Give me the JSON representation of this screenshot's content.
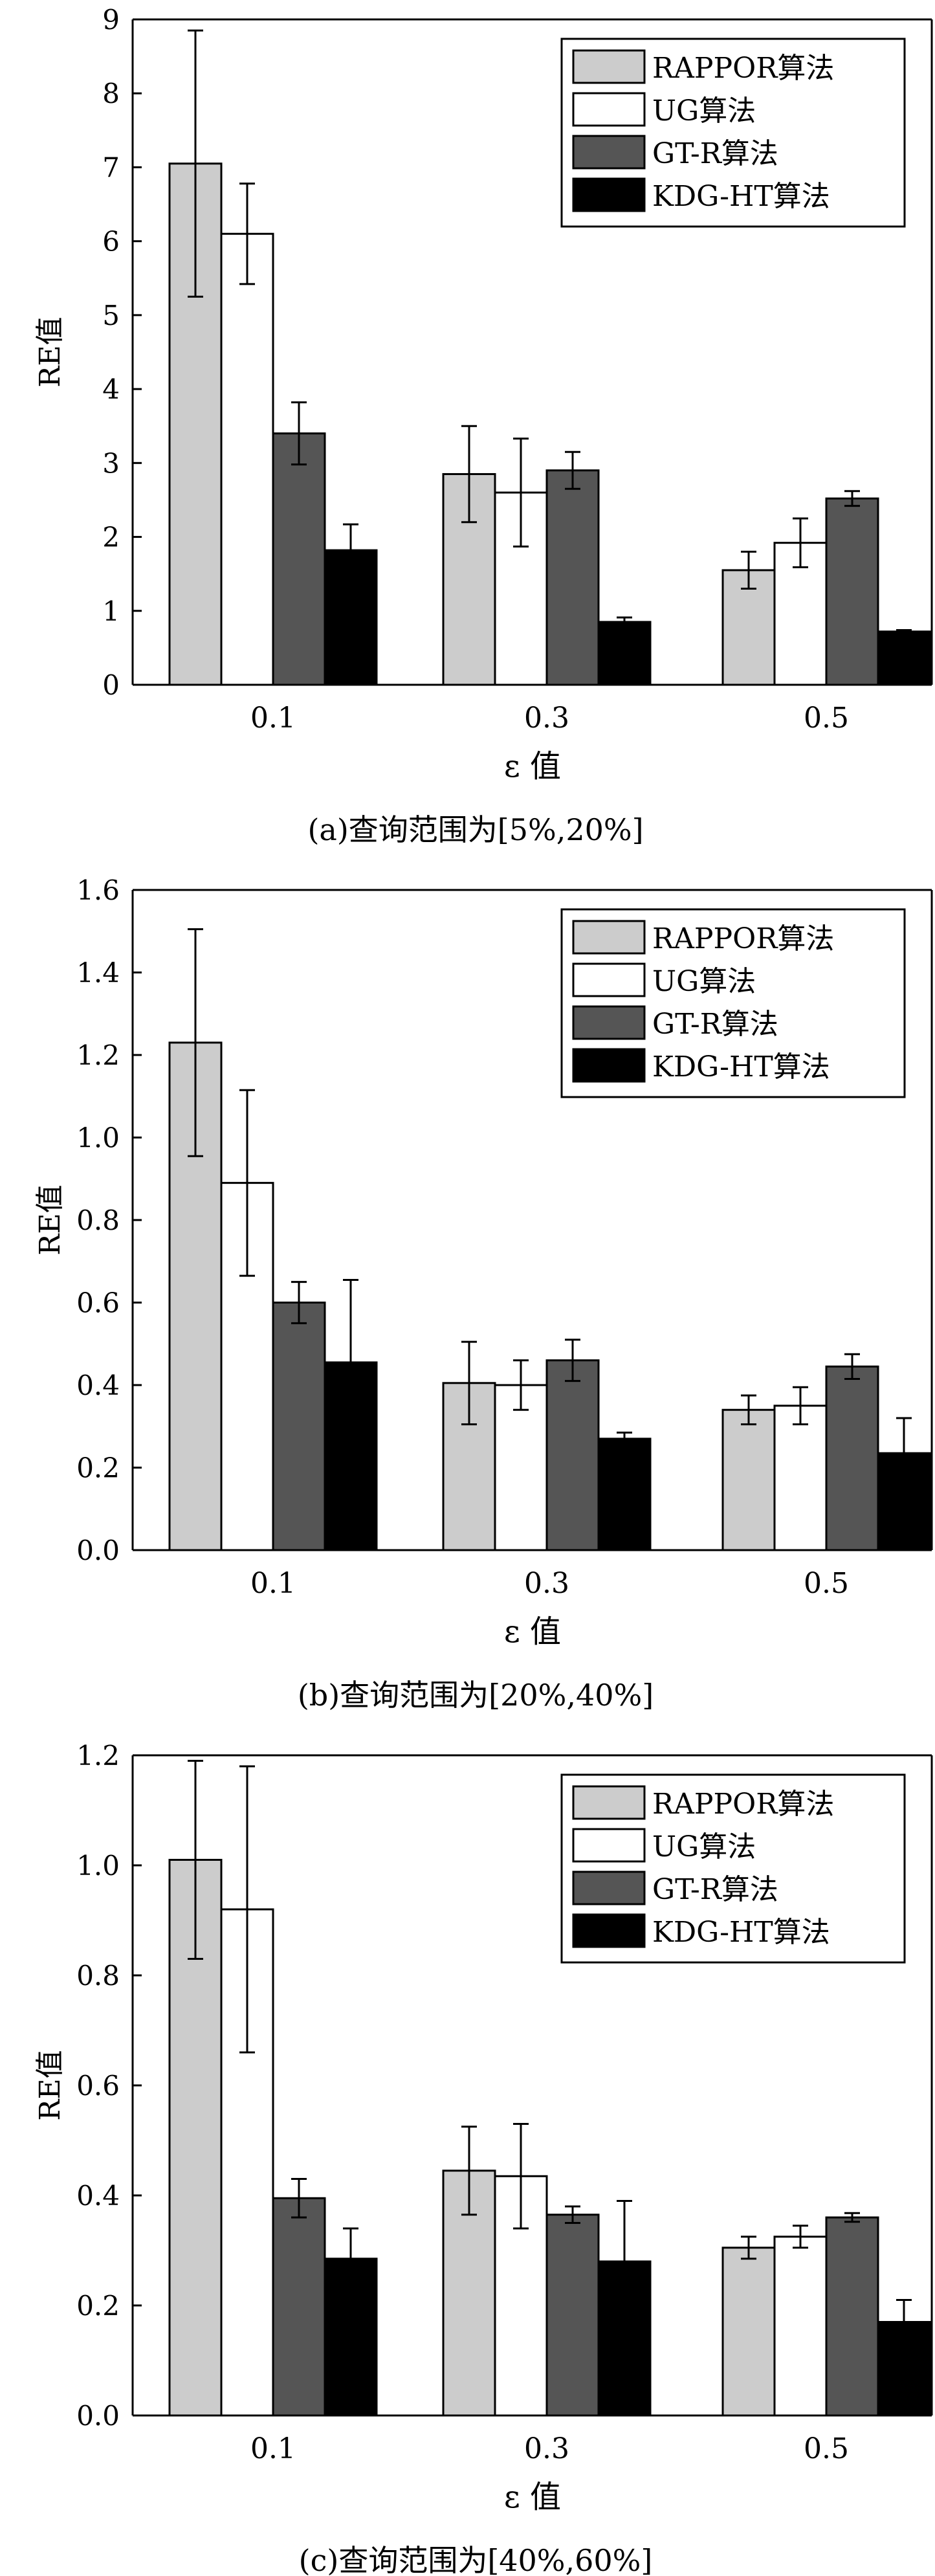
{
  "chart_data": [
    {
      "type": "bar",
      "categories": [
        "0.1",
        "0.3",
        "0.5"
      ],
      "series": [
        {
          "name": "RAPPOR算法",
          "values": [
            7.05,
            2.85,
            1.55
          ],
          "errors": [
            1.8,
            0.65,
            0.25
          ]
        },
        {
          "name": "UG算法",
          "values": [
            6.1,
            2.6,
            1.92
          ],
          "errors": [
            0.68,
            0.73,
            0.33
          ]
        },
        {
          "name": "GT-R算法",
          "values": [
            3.4,
            2.9,
            2.52
          ],
          "errors": [
            0.42,
            0.25,
            0.1
          ]
        },
        {
          "name": "KDG-HT算法",
          "values": [
            1.82,
            0.85,
            0.72
          ],
          "errors": [
            0.35,
            0.06,
            0.02
          ]
        }
      ],
      "ylim": [
        0,
        9
      ],
      "yticks": [
        "0",
        "1",
        "2",
        "3",
        "4",
        "5",
        "6",
        "7",
        "8",
        "9"
      ],
      "ylabel": "RE值",
      "xlabel": "ε 值",
      "caption": "(a)查询范围为[5%,20%]",
      "legend_position": "top-right",
      "grid": false
    },
    {
      "type": "bar",
      "categories": [
        "0.1",
        "0.3",
        "0.5"
      ],
      "series": [
        {
          "name": "RAPPOR算法",
          "values": [
            1.23,
            0.405,
            0.34
          ],
          "errors": [
            0.275,
            0.1,
            0.035
          ]
        },
        {
          "name": "UG算法",
          "values": [
            0.89,
            0.4,
            0.35
          ],
          "errors": [
            0.225,
            0.06,
            0.045
          ]
        },
        {
          "name": "GT-R算法",
          "values": [
            0.6,
            0.46,
            0.445
          ],
          "errors": [
            0.05,
            0.05,
            0.03
          ]
        },
        {
          "name": "KDG-HT算法",
          "values": [
            0.455,
            0.27,
            0.235
          ],
          "errors": [
            0.2,
            0.015,
            0.085
          ]
        }
      ],
      "ylim": [
        0,
        1.6
      ],
      "yticks": [
        "0.0",
        "0.2",
        "0.4",
        "0.6",
        "0.8",
        "1.0",
        "1.2",
        "1.4",
        "1.6"
      ],
      "ylabel": "RE值",
      "xlabel": "ε 值",
      "caption": "(b)查询范围为[20%,40%]",
      "legend_position": "top-right",
      "grid": false
    },
    {
      "type": "bar",
      "categories": [
        "0.1",
        "0.3",
        "0.5"
      ],
      "series": [
        {
          "name": "RAPPOR算法",
          "values": [
            1.01,
            0.445,
            0.305
          ],
          "errors": [
            0.18,
            0.08,
            0.02
          ]
        },
        {
          "name": "UG算法",
          "values": [
            0.92,
            0.435,
            0.325
          ],
          "errors": [
            0.26,
            0.095,
            0.02
          ]
        },
        {
          "name": "GT-R算法",
          "values": [
            0.395,
            0.365,
            0.36
          ],
          "errors": [
            0.035,
            0.015,
            0.008
          ]
        },
        {
          "name": "KDG-HT算法",
          "values": [
            0.285,
            0.28,
            0.17
          ],
          "errors": [
            0.055,
            0.11,
            0.04
          ]
        }
      ],
      "ylim": [
        0,
        1.2
      ],
      "yticks": [
        "0.0",
        "0.2",
        "0.4",
        "0.6",
        "0.8",
        "1.0",
        "1.2"
      ],
      "ylabel": "RE值",
      "xlabel": "ε 值",
      "caption": "(c)查询范围为[40%,60%]",
      "legend_position": "top-right",
      "grid": false
    }
  ],
  "colors": {
    "RAPPOR算法": "#cccccc",
    "UG算法": "#ffffff",
    "GT-R算法": "#555555",
    "KDG-HT算法": "#000000",
    "axis": "#000000"
  }
}
